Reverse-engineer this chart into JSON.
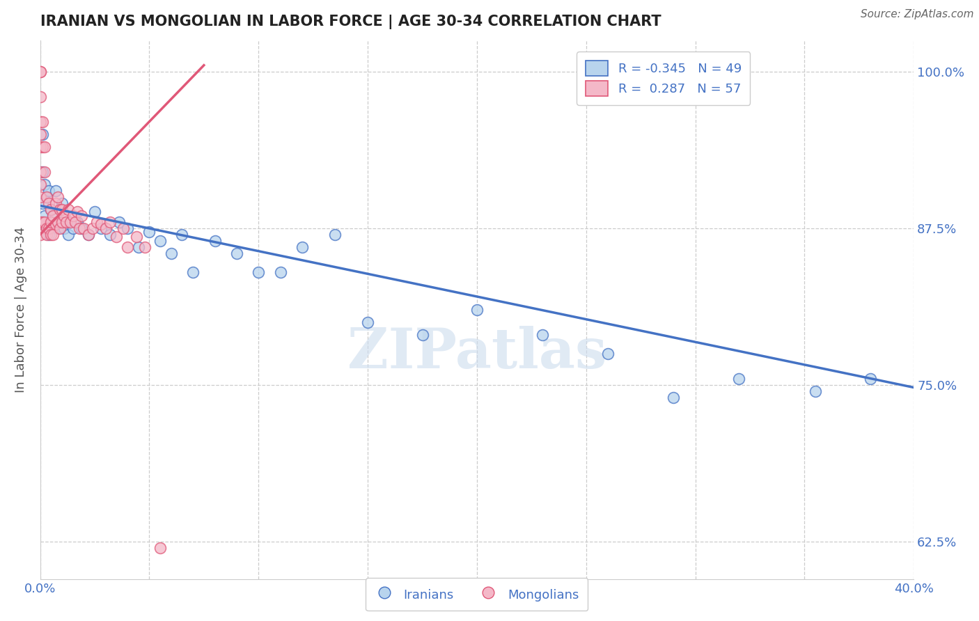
{
  "title": "IRANIAN VS MONGOLIAN IN LABOR FORCE | AGE 30-34 CORRELATION CHART",
  "source": "Source: ZipAtlas.com",
  "ylabel": "In Labor Force | Age 30-34",
  "xlim": [
    0.0,
    0.4
  ],
  "ylim": [
    0.595,
    1.025
  ],
  "xticks": [
    0.0,
    0.05,
    0.1,
    0.15,
    0.2,
    0.25,
    0.3,
    0.35,
    0.4
  ],
  "yticks": [
    0.625,
    0.75,
    0.875,
    1.0
  ],
  "yticklabels": [
    "62.5%",
    "75.0%",
    "87.5%",
    "100.0%"
  ],
  "legend_r_iranian": "-0.345",
  "legend_n_iranian": "49",
  "legend_r_mongolian": "0.287",
  "legend_n_mongolian": "57",
  "color_iranian_fill": "#b8d4ed",
  "color_iranian_edge": "#4472c4",
  "color_mongolian_fill": "#f4b8c8",
  "color_mongolian_edge": "#e05878",
  "color_iranian_trendline": "#4472c4",
  "color_mongolian_trendline": "#e05878",
  "watermark": "ZIPatlas",
  "iranians_x": [
    0.001,
    0.001,
    0.001,
    0.001,
    0.002,
    0.002,
    0.003,
    0.003,
    0.004,
    0.004,
    0.005,
    0.006,
    0.007,
    0.008,
    0.009,
    0.01,
    0.011,
    0.012,
    0.013,
    0.015,
    0.017,
    0.019,
    0.022,
    0.025,
    0.028,
    0.032,
    0.036,
    0.04,
    0.045,
    0.05,
    0.055,
    0.06,
    0.065,
    0.07,
    0.08,
    0.09,
    0.1,
    0.11,
    0.12,
    0.135,
    0.15,
    0.175,
    0.2,
    0.23,
    0.26,
    0.29,
    0.32,
    0.355,
    0.38
  ],
  "iranians_y": [
    0.95,
    0.92,
    0.895,
    0.88,
    0.91,
    0.885,
    0.9,
    0.875,
    0.905,
    0.87,
    0.89,
    0.885,
    0.905,
    0.875,
    0.88,
    0.895,
    0.875,
    0.88,
    0.87,
    0.875,
    0.88,
    0.875,
    0.87,
    0.888,
    0.875,
    0.87,
    0.88,
    0.875,
    0.86,
    0.872,
    0.865,
    0.855,
    0.87,
    0.84,
    0.865,
    0.855,
    0.84,
    0.84,
    0.86,
    0.87,
    0.8,
    0.79,
    0.81,
    0.79,
    0.775,
    0.74,
    0.755,
    0.745,
    0.755
  ],
  "mongolians_x": [
    0.0,
    0.0,
    0.0,
    0.0,
    0.0,
    0.0,
    0.0,
    0.0,
    0.0,
    0.0,
    0.0,
    0.001,
    0.001,
    0.001,
    0.002,
    0.002,
    0.002,
    0.003,
    0.003,
    0.003,
    0.004,
    0.004,
    0.005,
    0.005,
    0.005,
    0.006,
    0.006,
    0.007,
    0.007,
    0.008,
    0.008,
    0.009,
    0.009,
    0.01,
    0.01,
    0.011,
    0.012,
    0.013,
    0.014,
    0.015,
    0.016,
    0.017,
    0.018,
    0.019,
    0.02,
    0.022,
    0.024,
    0.026,
    0.028,
    0.03,
    0.032,
    0.035,
    0.038,
    0.04,
    0.044,
    0.048,
    0.055
  ],
  "mongolians_y": [
    1.0,
    1.0,
    0.98,
    0.96,
    0.95,
    0.94,
    0.92,
    0.91,
    0.9,
    0.88,
    0.87,
    0.96,
    0.94,
    0.88,
    0.94,
    0.92,
    0.88,
    0.9,
    0.875,
    0.87,
    0.895,
    0.875,
    0.89,
    0.88,
    0.87,
    0.885,
    0.87,
    0.895,
    0.878,
    0.9,
    0.88,
    0.89,
    0.875,
    0.89,
    0.88,
    0.885,
    0.88,
    0.89,
    0.88,
    0.885,
    0.88,
    0.888,
    0.875,
    0.885,
    0.875,
    0.87,
    0.875,
    0.88,
    0.878,
    0.875,
    0.88,
    0.868,
    0.875,
    0.86,
    0.868,
    0.86,
    0.62
  ],
  "iran_trendline_x0": 0.0,
  "iran_trendline_x1": 0.4,
  "iran_trendline_y0": 0.893,
  "iran_trendline_y1": 0.748,
  "mong_trendline_x0": 0.0,
  "mong_trendline_x1": 0.075,
  "mong_trendline_y0": 0.87,
  "mong_trendline_y1": 1.005
}
